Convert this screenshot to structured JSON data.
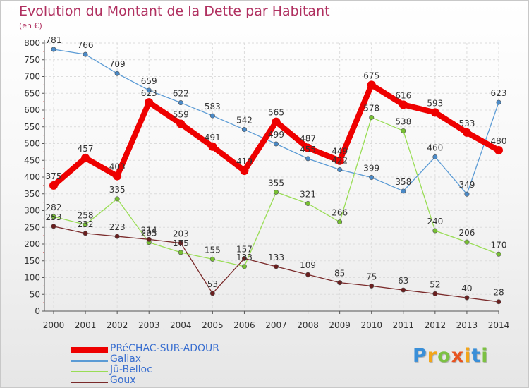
{
  "title": "Evolution du Montant de la Dette par Habitant",
  "subtitle": "(en €)",
  "logo": {
    "text": "Proxiti",
    "letters": [
      {
        "ch": "P",
        "color": "#3a8fd8"
      },
      {
        "ch": "r",
        "color": "#f2a51a"
      },
      {
        "ch": "o",
        "color": "#7cc142"
      },
      {
        "ch": "x",
        "color": "#e8531f"
      },
      {
        "ch": "i",
        "color": "#f2a51a"
      },
      {
        "ch": "t",
        "color": "#3a8fd8"
      },
      {
        "ch": "i",
        "color": "#7cc142"
      }
    ]
  },
  "chart_data": {
    "type": "line",
    "title": "Evolution du Montant de la Dette par Habitant",
    "subtitle": "(en €)",
    "xlabel": "",
    "ylabel": "",
    "x": [
      "2000",
      "2001",
      "2002",
      "2003",
      "2004",
      "2005",
      "2006",
      "2007",
      "2008",
      "2009",
      "2010",
      "2011",
      "2012",
      "2013",
      "2014"
    ],
    "ylim": [
      0,
      800
    ],
    "yticks": [
      0,
      50,
      100,
      150,
      200,
      250,
      300,
      350,
      400,
      450,
      500,
      550,
      600,
      650,
      700,
      750,
      800
    ],
    "grid": true,
    "legend_position": "bottom-left",
    "series": [
      {
        "name": "Galiax",
        "color": "#5b9bd5",
        "marker": "#4a8ac8",
        "width": 1.3,
        "values": [
          781,
          766,
          709,
          659,
          622,
          583,
          542,
          499,
          455,
          422,
          399,
          358,
          460,
          349,
          623
        ]
      },
      {
        "name": "Jû-Belloc",
        "color": "#99dd55",
        "marker": "#77c033",
        "width": 1.3,
        "values": [
          282,
          258,
          335,
          205,
          175,
          155,
          133,
          355,
          321,
          266,
          578,
          538,
          240,
          206,
          170
        ]
      },
      {
        "name": "Goux",
        "color": "#7a2a2a",
        "marker": "#6a1f1f",
        "width": 1.3,
        "values": [
          253,
          232,
          223,
          214,
          203,
          53,
          157,
          133,
          109,
          85,
          75,
          63,
          52,
          40,
          28
        ]
      },
      {
        "name": "PRéCHAC-SUR-ADOUR",
        "color": "#ee0000",
        "marker": "#ee0000",
        "width": 8,
        "values": [
          375,
          457,
          403,
          623,
          559,
          491,
          419,
          565,
          487,
          449,
          675,
          616,
          593,
          533,
          480
        ]
      }
    ],
    "legend_order": [
      "PRéCHAC-SUR-ADOUR",
      "Galiax",
      "Jû-Belloc",
      "Goux"
    ]
  }
}
